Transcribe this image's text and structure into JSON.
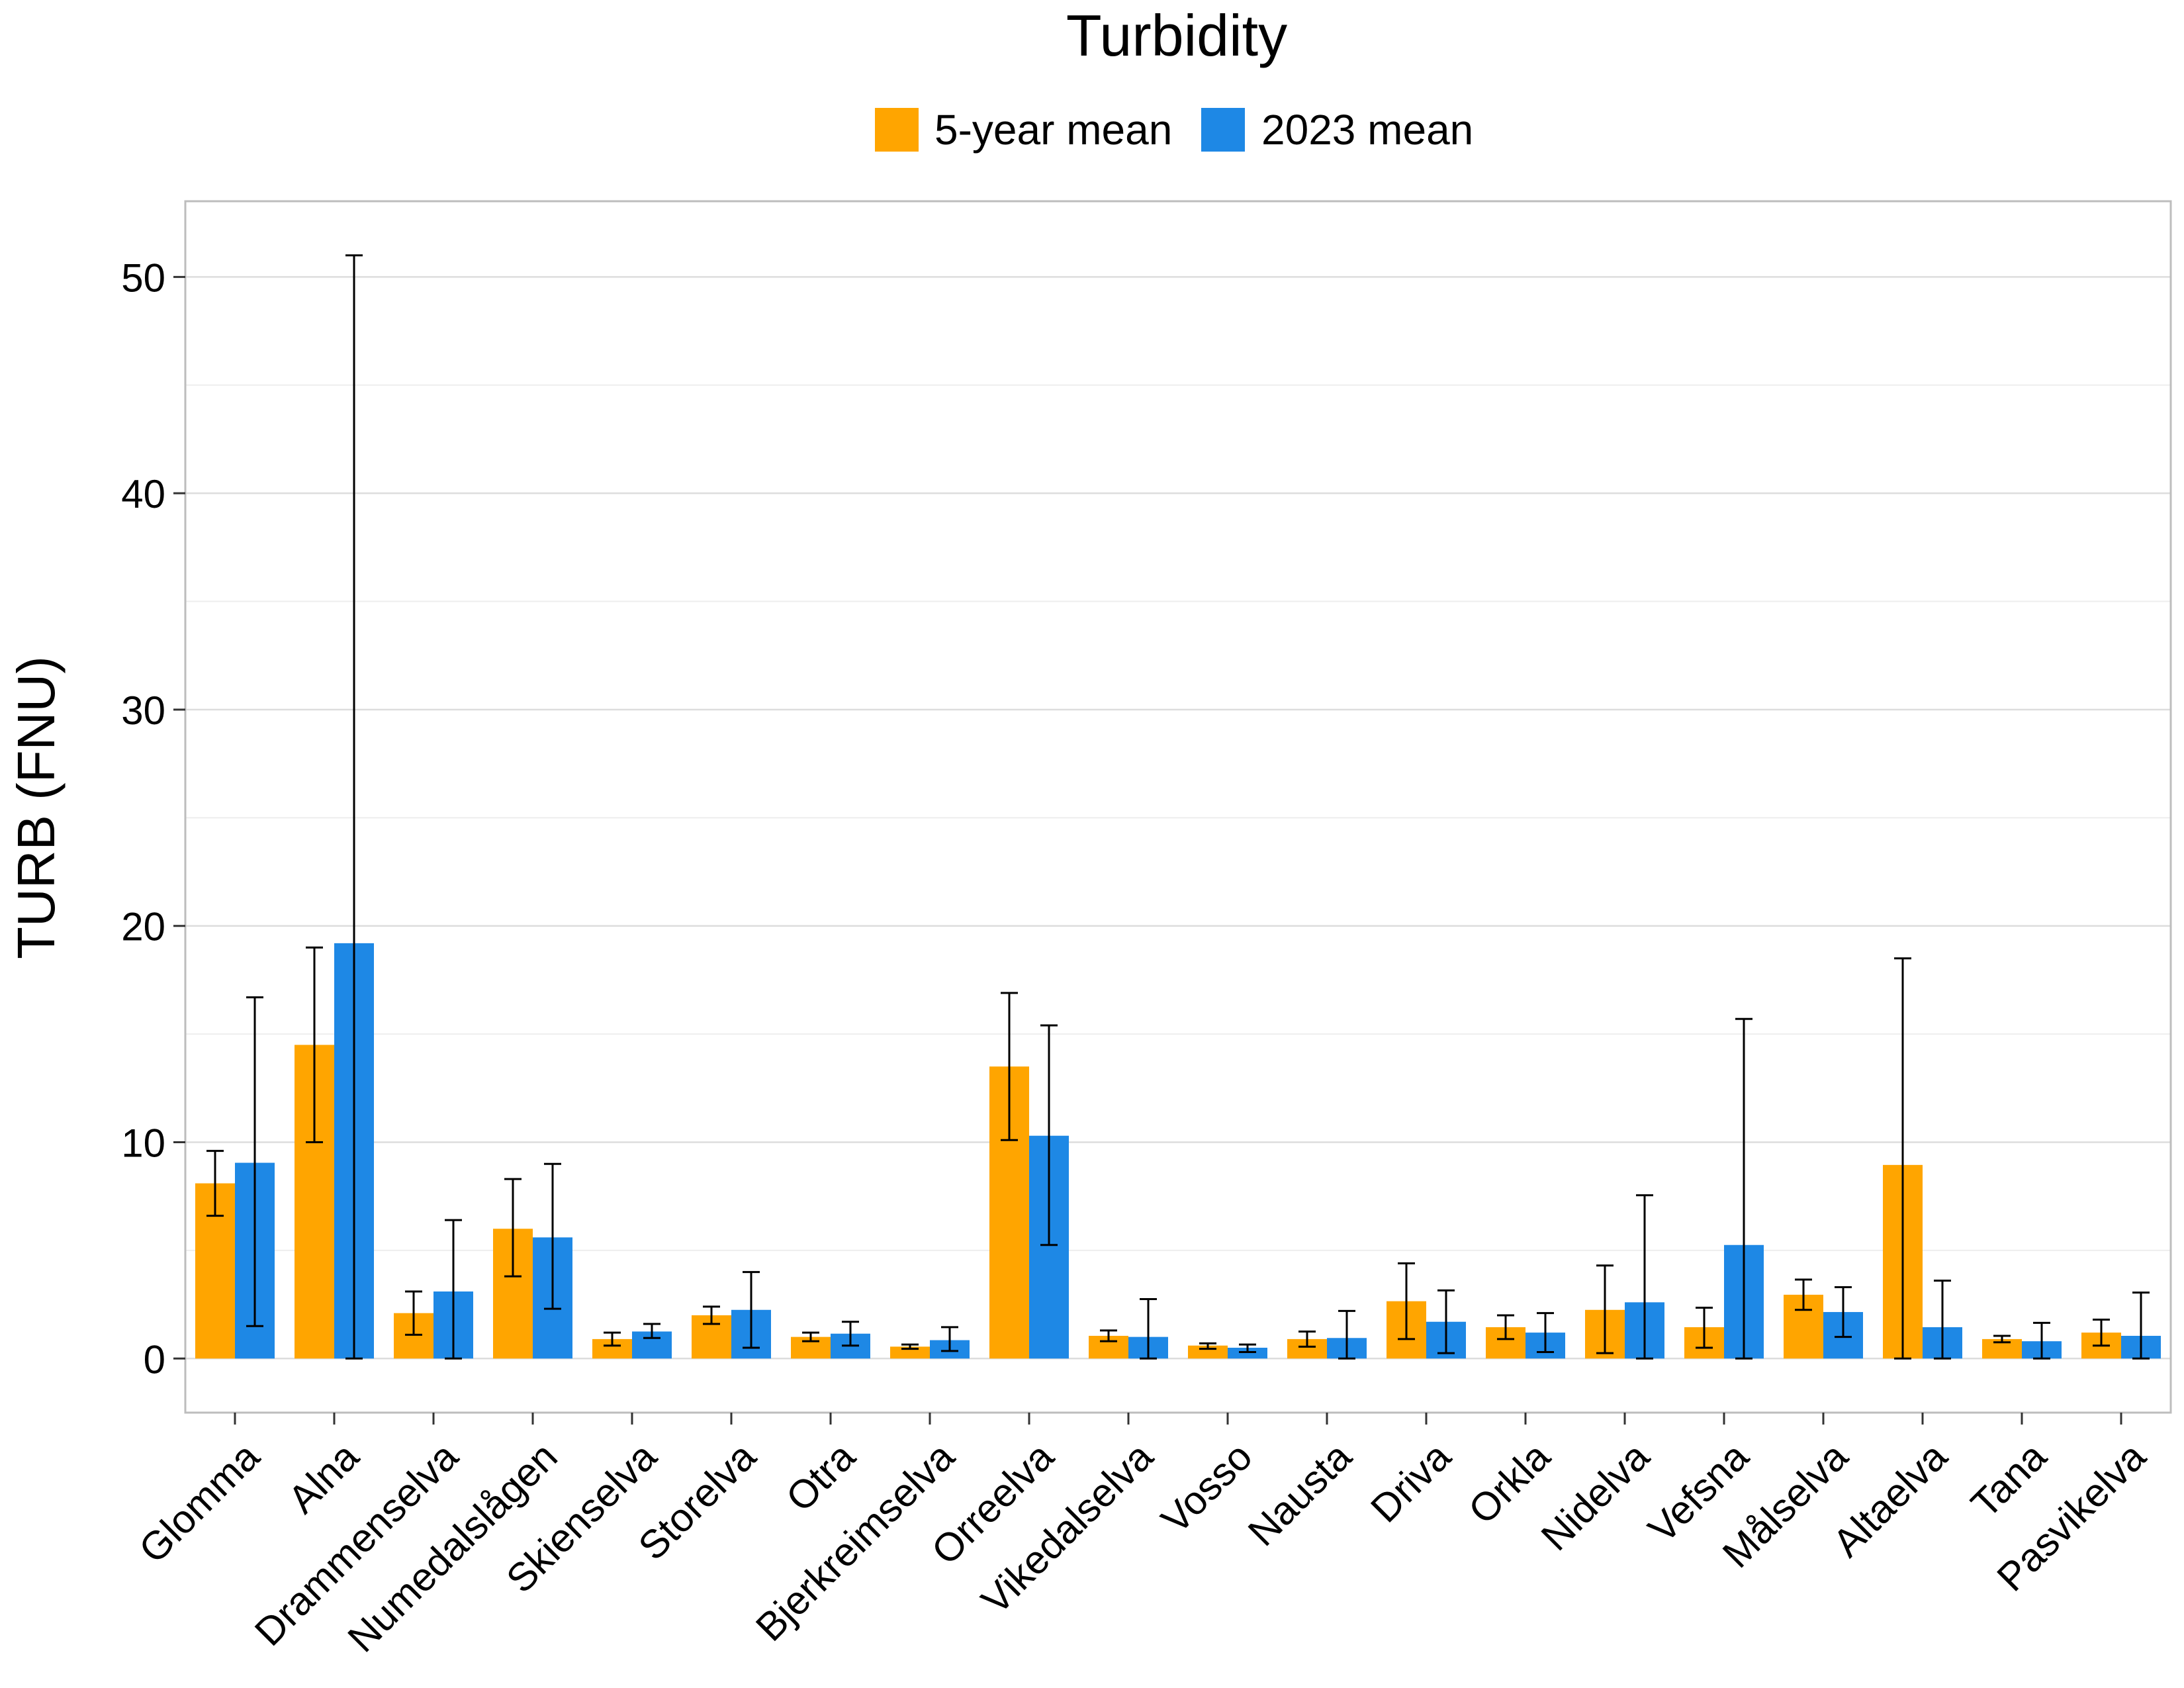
{
  "chart_data": {
    "type": "bar",
    "title": "Turbidity",
    "ylabel": "TURB (FNU)",
    "xlabel": "",
    "ylim": [
      -2.5,
      53.5
    ],
    "yticks": [
      0,
      10,
      20,
      30,
      40,
      50
    ],
    "grid": true,
    "legend": "top-center",
    "categories": [
      "Glomma",
      "Alna",
      "Drammenselva",
      "Numedalslågen",
      "Skienselva",
      "Storelva",
      "Otra",
      "Bjerkreimselva",
      "Orreelva",
      "Vikedalselva",
      "Vosso",
      "Nausta",
      "Driva",
      "Orkla",
      "Nidelva",
      "Vefsna",
      "Målselva",
      "Altaelva",
      "Tana",
      "Pasvikelva"
    ],
    "series": [
      {
        "name": "5-year mean",
        "color": "#FFA500",
        "values": [
          8.1,
          14.5,
          2.1,
          6.0,
          0.9,
          2.0,
          1.0,
          0.55,
          13.5,
          1.05,
          0.6,
          0.9,
          2.65,
          1.45,
          2.25,
          1.45,
          2.95,
          8.95,
          0.9,
          1.2
        ],
        "err_low": [
          6.6,
          10.0,
          1.1,
          3.8,
          0.6,
          1.6,
          0.8,
          0.45,
          10.1,
          0.8,
          0.45,
          0.55,
          0.9,
          0.9,
          0.25,
          0.5,
          2.25,
          0.0,
          0.75,
          0.6
        ],
        "err_high": [
          9.6,
          19.0,
          3.1,
          8.3,
          1.2,
          2.4,
          1.2,
          0.65,
          16.9,
          1.3,
          0.7,
          1.25,
          4.4,
          2.0,
          4.3,
          2.35,
          3.65,
          18.5,
          1.05,
          1.8
        ]
      },
      {
        "name": "2023 mean",
        "color": "#1E88E5",
        "values": [
          9.05,
          19.2,
          3.1,
          5.6,
          1.25,
          2.25,
          1.15,
          0.85,
          10.3,
          1.0,
          0.5,
          0.95,
          1.7,
          1.2,
          2.6,
          5.25,
          2.15,
          1.45,
          0.8,
          1.05
        ],
        "err_low": [
          1.5,
          0.0,
          0.0,
          2.3,
          0.95,
          0.5,
          0.6,
          0.35,
          5.25,
          0.0,
          0.3,
          0.0,
          0.25,
          0.3,
          0.0,
          0.0,
          1.0,
          0.0,
          0.0,
          0.0
        ],
        "err_high": [
          16.7,
          51.0,
          6.4,
          9.0,
          1.6,
          4.0,
          1.7,
          1.45,
          15.4,
          2.75,
          0.65,
          2.2,
          3.15,
          2.1,
          7.55,
          15.7,
          3.3,
          3.6,
          1.65,
          3.05
        ]
      }
    ]
  }
}
